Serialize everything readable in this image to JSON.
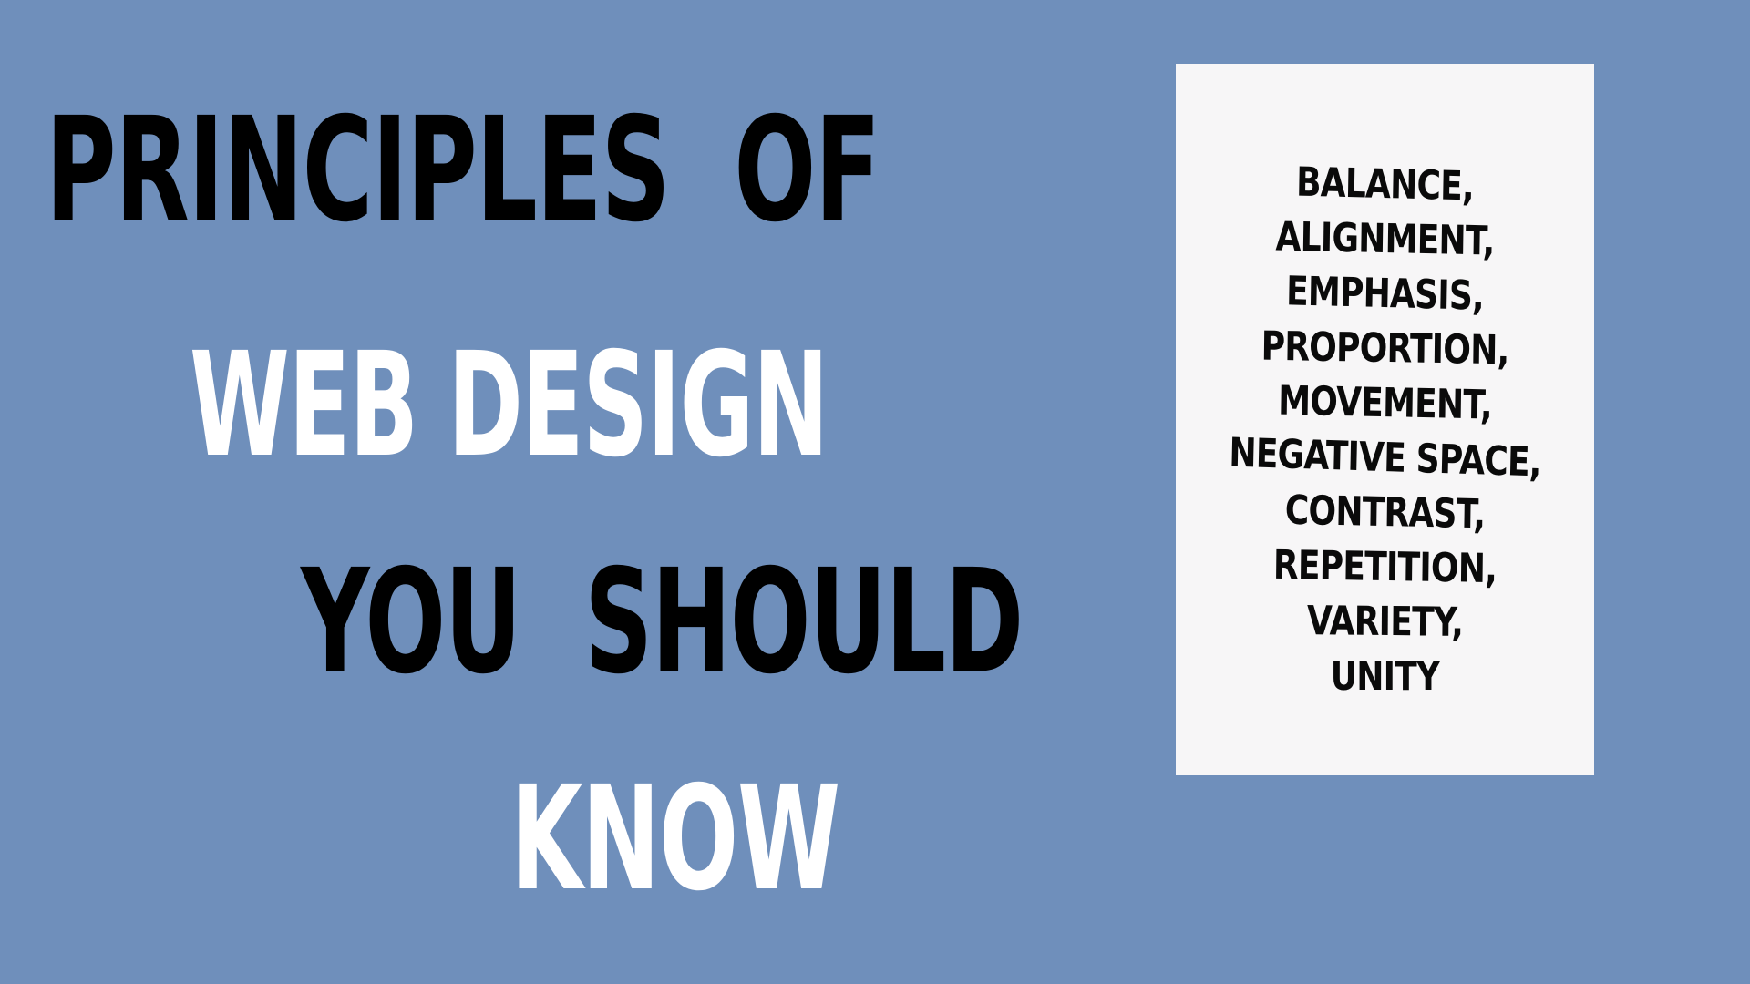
{
  "colors": {
    "background": "#6f8fbb",
    "card": "#f7f6f7",
    "dark_text": "#000000",
    "light_text": "#ffffff"
  },
  "headline": {
    "line1": "PRINCIPLES  OF",
    "line2": "WEB DESIGN",
    "line3": "YOU  SHOULD",
    "line4": "KNOW"
  },
  "principles": [
    "BALANCE,",
    "ALIGNMENT,",
    "EMPHASIS,",
    "PROPORTION,",
    "MOVEMENT,",
    "NEGATIVE SPACE,",
    "CONTRAST,",
    "REPETITION,",
    "VARIETY,",
    "UNITY"
  ]
}
